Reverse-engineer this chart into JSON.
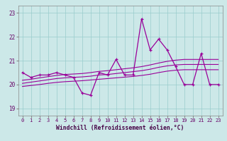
{
  "xlabel": "Windchill (Refroidissement éolien,°C)",
  "bg_color": "#cce8e8",
  "line_color": "#990099",
  "grid_color": "#99cccc",
  "xlim_min": -0.5,
  "xlim_max": 23.5,
  "ylim_min": 18.7,
  "ylim_max": 23.3,
  "yticks": [
    19,
    20,
    21,
    22,
    23
  ],
  "xticks": [
    0,
    1,
    2,
    3,
    4,
    5,
    6,
    7,
    8,
    9,
    10,
    11,
    12,
    13,
    14,
    15,
    16,
    17,
    18,
    19,
    20,
    21,
    22,
    23
  ],
  "main_x": [
    0,
    1,
    2,
    3,
    4,
    5,
    6,
    7,
    8,
    9,
    10,
    11,
    12,
    13,
    14,
    15,
    16,
    17,
    18,
    19,
    20,
    21,
    22,
    23
  ],
  "main_y": [
    20.5,
    20.3,
    20.4,
    20.4,
    20.5,
    20.4,
    20.3,
    19.65,
    19.55,
    20.5,
    20.4,
    21.05,
    20.4,
    20.4,
    22.75,
    21.45,
    21.9,
    21.45,
    20.75,
    20.0,
    20.0,
    21.3,
    20.0,
    20.0
  ],
  "tr1_x": [
    0,
    1,
    2,
    3,
    4,
    5,
    6,
    7,
    8,
    9,
    10,
    11,
    12,
    13,
    14,
    15,
    16,
    17,
    18,
    19,
    20,
    21,
    22,
    23
  ],
  "tr1_y": [
    20.05,
    20.1,
    20.15,
    20.2,
    20.25,
    20.28,
    20.3,
    20.32,
    20.35,
    20.4,
    20.42,
    20.46,
    20.5,
    20.54,
    20.58,
    20.64,
    20.72,
    20.78,
    20.82,
    20.84,
    20.84,
    20.84,
    20.84,
    20.84
  ],
  "tr2_x": [
    0,
    1,
    2,
    3,
    4,
    5,
    6,
    7,
    8,
    9,
    10,
    11,
    12,
    13,
    14,
    15,
    16,
    17,
    18,
    19,
    20,
    21,
    22,
    23
  ],
  "tr2_y": [
    19.92,
    19.96,
    20.0,
    20.05,
    20.09,
    20.12,
    20.14,
    20.16,
    20.19,
    20.22,
    20.25,
    20.28,
    20.31,
    20.34,
    20.38,
    20.43,
    20.5,
    20.56,
    20.6,
    20.62,
    20.62,
    20.62,
    20.62,
    20.62
  ],
  "tr3_x": [
    0,
    1,
    2,
    3,
    4,
    5,
    6,
    7,
    8,
    9,
    10,
    11,
    12,
    13,
    14,
    15,
    16,
    17,
    18,
    19,
    20,
    21,
    22,
    23
  ],
  "tr3_y": [
    20.18,
    20.22,
    20.28,
    20.33,
    20.38,
    20.42,
    20.44,
    20.46,
    20.5,
    20.55,
    20.58,
    20.62,
    20.66,
    20.7,
    20.75,
    20.82,
    20.9,
    20.97,
    21.02,
    21.05,
    21.05,
    21.05,
    21.05,
    21.05
  ]
}
